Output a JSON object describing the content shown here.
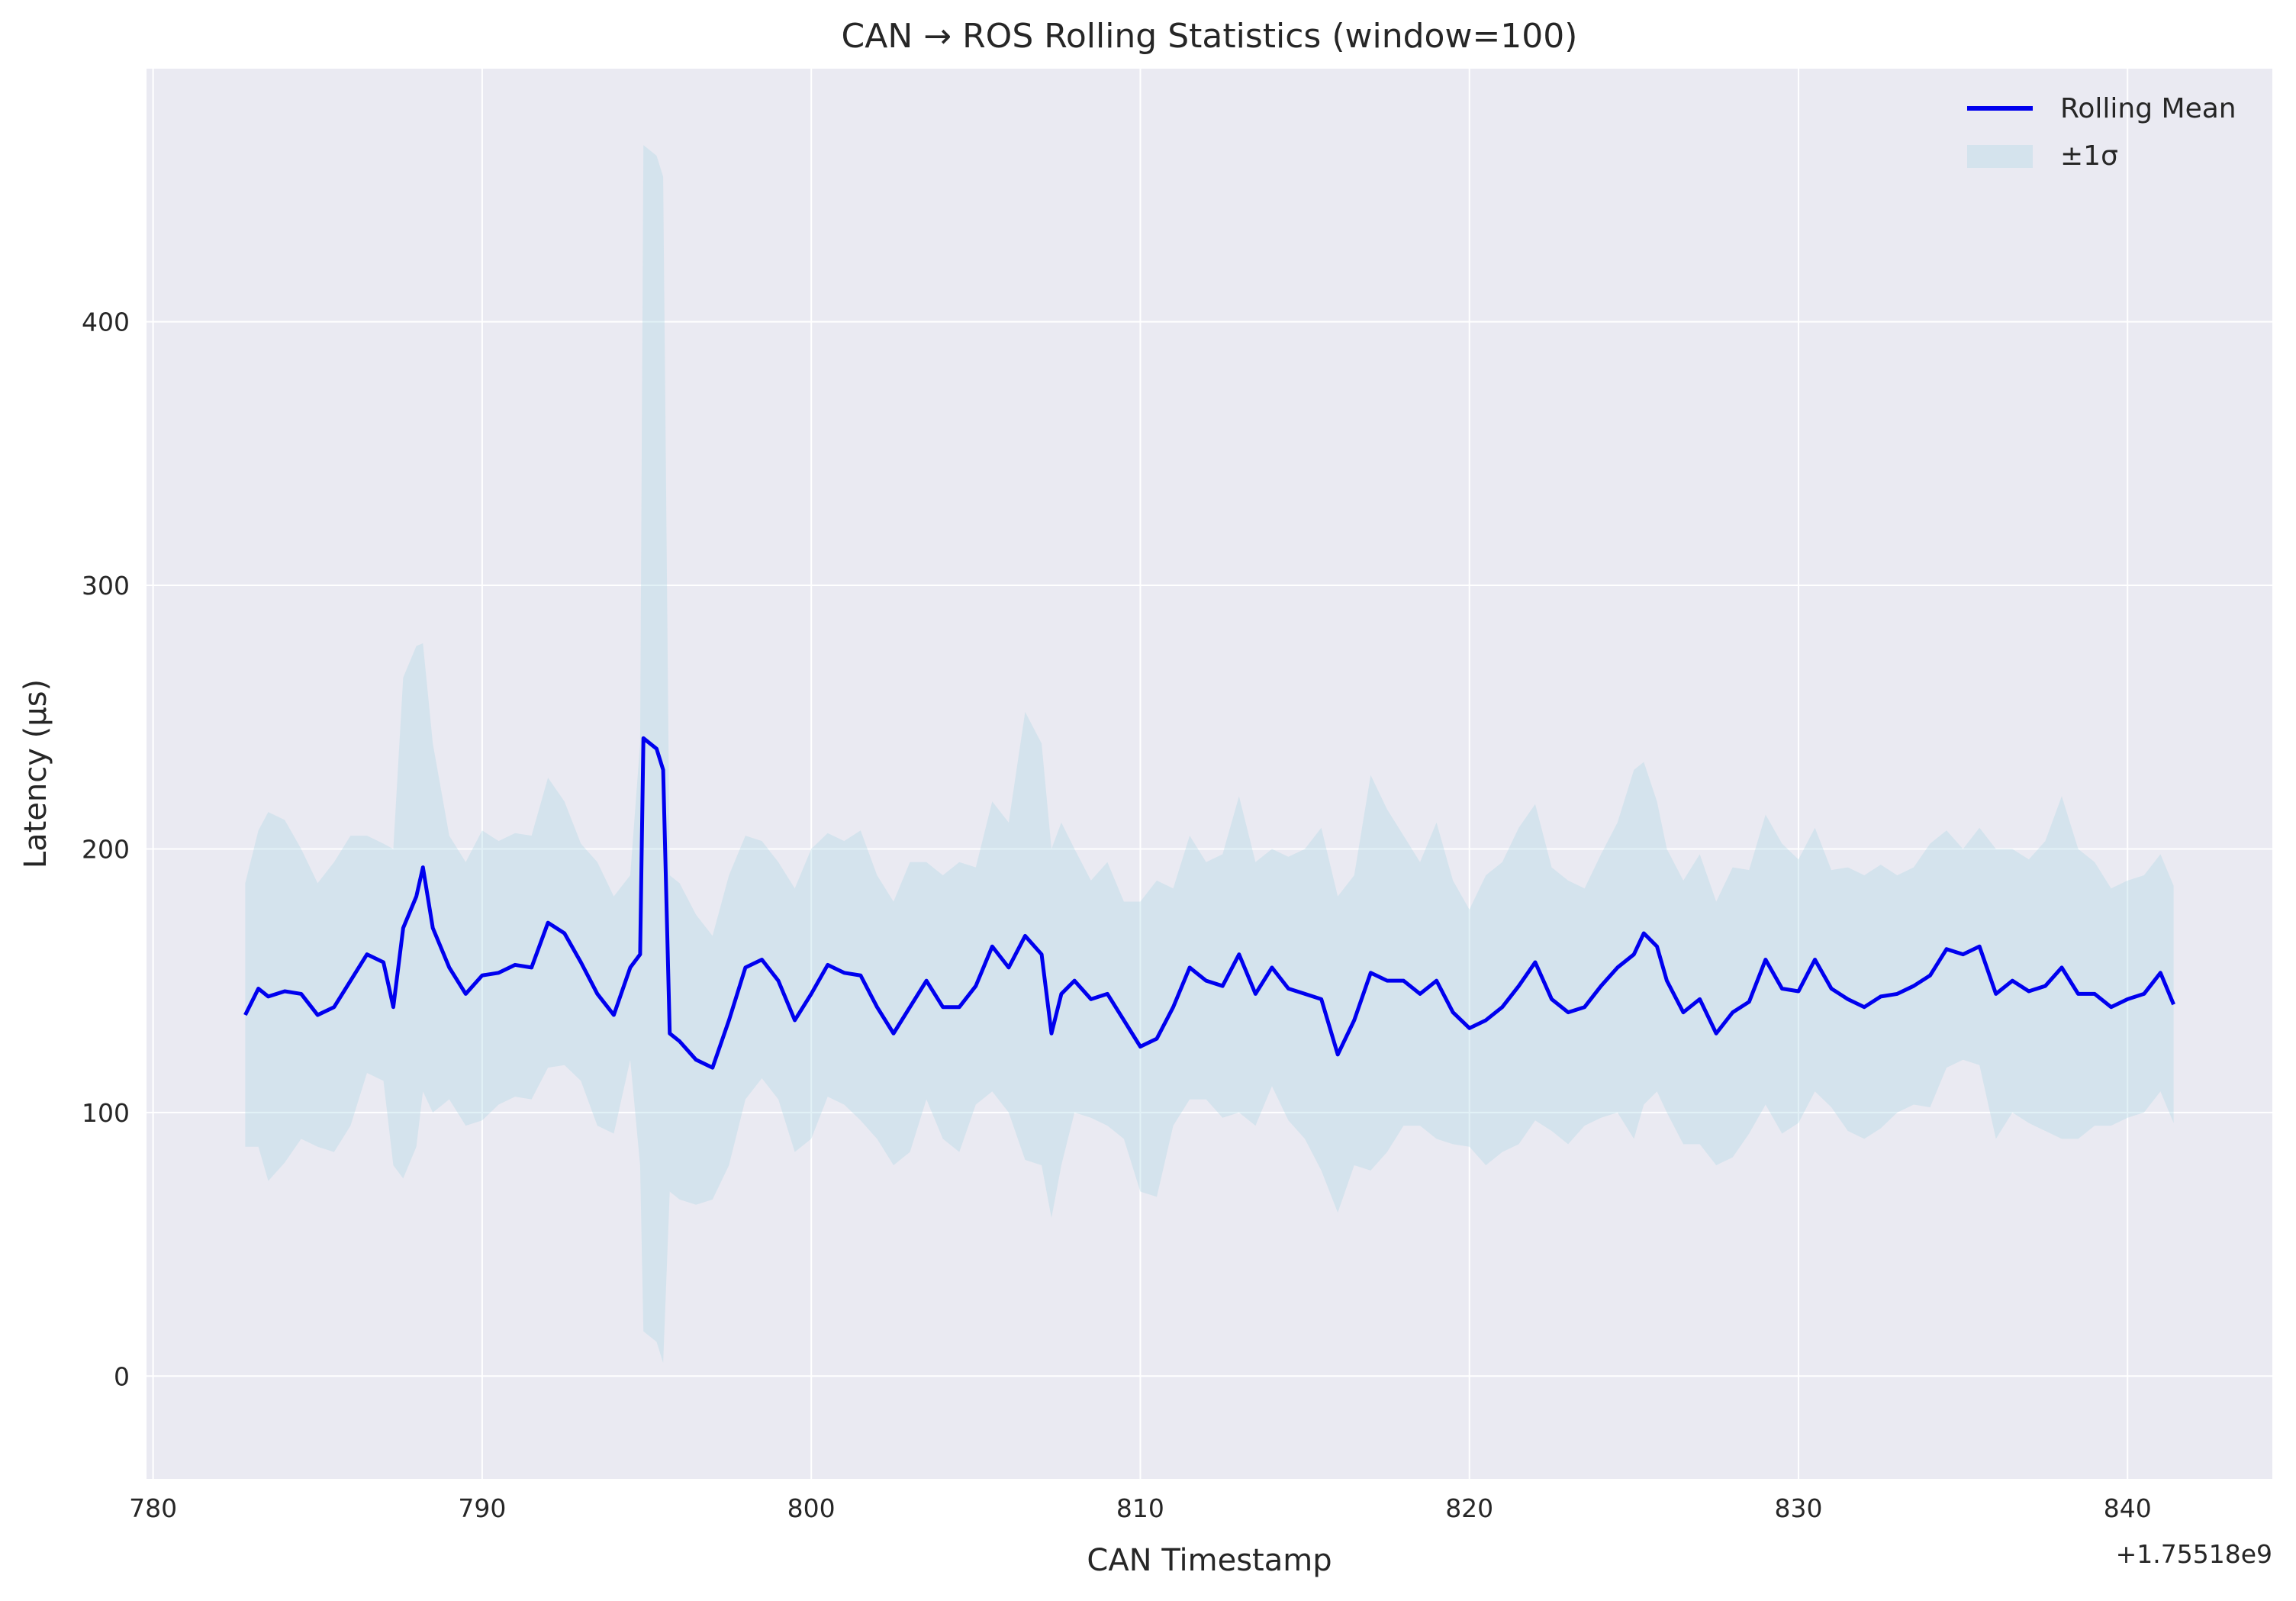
{
  "chart_data": {
    "type": "line",
    "title": "CAN → ROS Rolling Statistics (window=100)",
    "x_label": "CAN Timestamp",
    "y_label": "Latency (µs)",
    "x_offset_label": "+1.75518e9",
    "xlim": [
      779.8,
      844.4
    ],
    "ylim": [
      -39,
      496
    ],
    "xticks": [
      780,
      790,
      800,
      810,
      820,
      830,
      840
    ],
    "yticks": [
      0,
      100,
      200,
      300,
      400
    ],
    "grid": true,
    "legend": "upper right",
    "x": [
      782.8,
      783.2,
      783.5,
      784,
      784.5,
      785,
      785.5,
      786,
      786.5,
      787,
      787.3,
      787.6,
      788,
      788.2,
      788.5,
      789,
      789.5,
      790,
      790.5,
      791,
      791.5,
      792,
      792.5,
      793,
      793.5,
      794,
      794.5,
      794.8,
      794.9,
      795.3,
      795.5,
      795.7,
      796,
      796.5,
      797,
      797.5,
      798,
      798.5,
      799,
      799.5,
      800,
      800.5,
      801,
      801.5,
      802,
      802.5,
      803,
      803.5,
      804,
      804.5,
      805,
      805.5,
      806,
      806.5,
      807,
      807.3,
      807.6,
      808,
      808.5,
      809,
      809.5,
      810,
      810.5,
      811,
      811.5,
      812,
      812.5,
      813,
      813.5,
      814,
      814.5,
      815,
      815.5,
      816,
      816.5,
      817,
      817.5,
      818,
      818.5,
      819,
      819.5,
      820,
      820.5,
      821,
      821.5,
      822,
      822.5,
      823,
      823.5,
      824,
      824.5,
      825,
      825.3,
      825.7,
      826,
      826.5,
      827,
      827.5,
      828,
      828.5,
      829,
      829.5,
      830,
      830.5,
      831,
      831.5,
      832,
      832.5,
      833,
      833.5,
      834,
      834.5,
      835,
      835.5,
      836,
      836.5,
      837,
      837.5,
      838,
      838.5,
      839,
      839.5,
      840,
      840.5,
      841,
      841.4
    ],
    "series": [
      {
        "name": "Rolling Mean",
        "color": "#0000ee",
        "values": [
          137,
          147,
          144,
          146,
          145,
          137,
          140,
          150,
          160,
          157,
          140,
          170,
          182,
          193,
          170,
          155,
          145,
          152,
          153,
          156,
          155,
          172,
          168,
          157,
          145,
          137,
          155,
          160,
          242,
          238,
          230,
          130,
          127,
          120,
          117,
          135,
          155,
          158,
          150,
          135,
          145,
          156,
          153,
          152,
          140,
          130,
          140,
          150,
          140,
          140,
          148,
          163,
          155,
          167,
          160,
          130,
          145,
          150,
          143,
          145,
          135,
          125,
          128,
          140,
          155,
          150,
          148,
          160,
          145,
          155,
          147,
          145,
          143,
          122,
          135,
          153,
          150,
          150,
          145,
          150,
          138,
          132,
          135,
          140,
          148,
          157,
          143,
          138,
          140,
          148,
          155,
          160,
          168,
          163,
          150,
          138,
          143,
          130,
          138,
          142,
          158,
          147,
          146,
          158,
          147,
          143,
          140,
          144,
          145,
          148,
          152,
          162,
          160,
          163,
          145,
          150,
          146,
          148,
          155,
          145,
          145,
          140,
          143,
          145,
          153,
          141
        ]
      },
      {
        "name": "±1σ",
        "color": "#add8e6",
        "alpha": 0.35,
        "upper": [
          187,
          207,
          214,
          211,
          200,
          187,
          195,
          205,
          205,
          202,
          200,
          265,
          277,
          278,
          240,
          205,
          195,
          207,
          203,
          206,
          205,
          227,
          218,
          202,
          195,
          182,
          190,
          240,
          467,
          463,
          455,
          190,
          187,
          175,
          167,
          190,
          205,
          203,
          195,
          185,
          200,
          206,
          203,
          207,
          190,
          180,
          195,
          195,
          190,
          195,
          193,
          218,
          210,
          252,
          240,
          200,
          210,
          200,
          188,
          195,
          180,
          180,
          188,
          185,
          205,
          195,
          198,
          220,
          195,
          200,
          197,
          200,
          208,
          182,
          190,
          228,
          215,
          205,
          195,
          210,
          188,
          177,
          190,
          195,
          208,
          217,
          193,
          188,
          185,
          198,
          210,
          230,
          233,
          218,
          200,
          188,
          198,
          180,
          193,
          192,
          213,
          202,
          196,
          208,
          192,
          193,
          190,
          194,
          190,
          193,
          202,
          207,
          200,
          208,
          200,
          200,
          196,
          203,
          220,
          200,
          195,
          185,
          188,
          190,
          198,
          186
        ],
        "lower": [
          87,
          87,
          74,
          81,
          90,
          87,
          85,
          95,
          115,
          112,
          80,
          75,
          87,
          108,
          100,
          105,
          95,
          97,
          103,
          106,
          105,
          117,
          118,
          112,
          95,
          92,
          120,
          80,
          17,
          13,
          5,
          70,
          67,
          65,
          67,
          80,
          105,
          113,
          105,
          85,
          90,
          106,
          103,
          97,
          90,
          80,
          85,
          105,
          90,
          85,
          103,
          108,
          100,
          82,
          80,
          60,
          80,
          100,
          98,
          95,
          90,
          70,
          68,
          95,
          105,
          105,
          98,
          100,
          95,
          110,
          97,
          90,
          78,
          62,
          80,
          78,
          85,
          95,
          95,
          90,
          88,
          87,
          80,
          85,
          88,
          97,
          93,
          88,
          95,
          98,
          100,
          90,
          103,
          108,
          100,
          88,
          88,
          80,
          83,
          92,
          103,
          92,
          96,
          108,
          102,
          93,
          90,
          94,
          100,
          103,
          102,
          117,
          120,
          118,
          90,
          100,
          96,
          93,
          90,
          90,
          95,
          95,
          98,
          100,
          108,
          96
        ]
      }
    ]
  }
}
